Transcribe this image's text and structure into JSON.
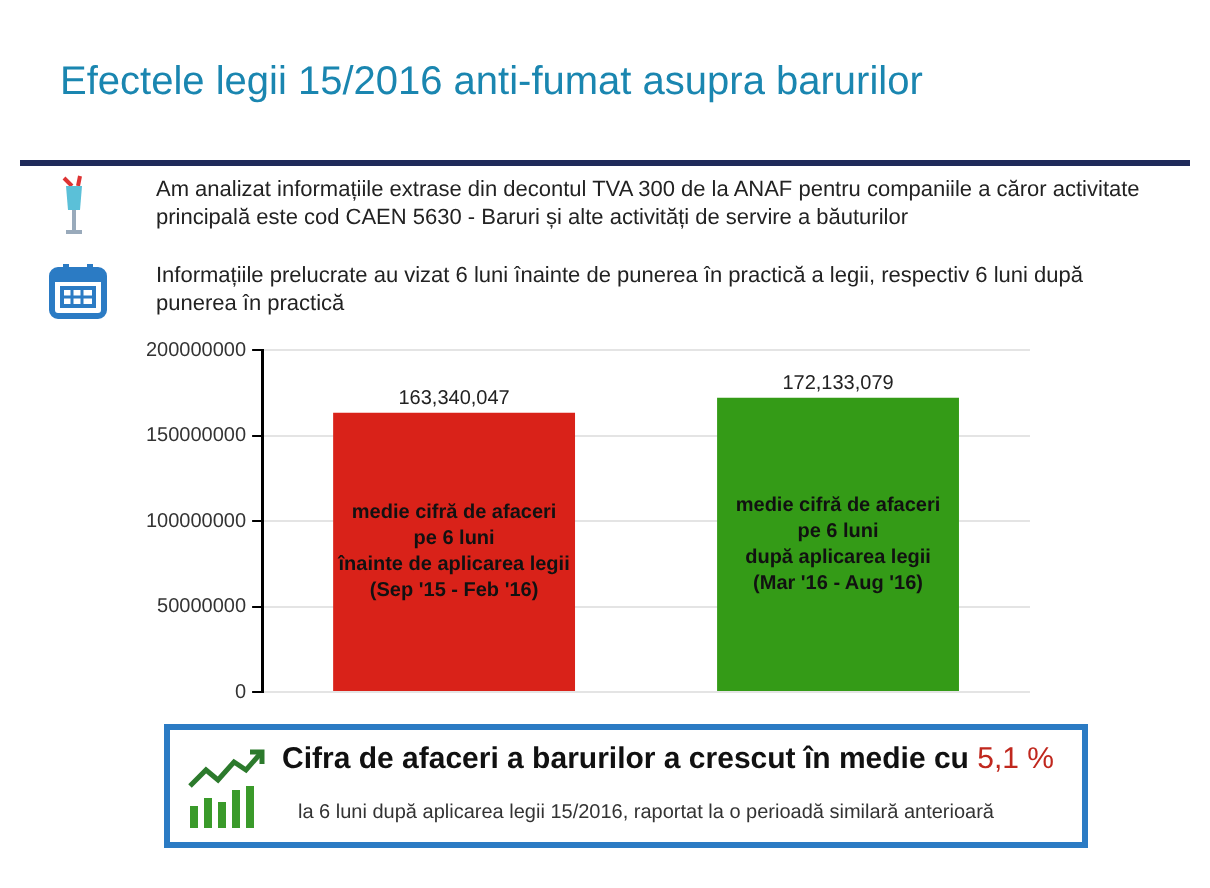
{
  "chart_data": {
    "type": "bar",
    "title": "Efectele legii 15/2016 anti-fumat asupra barurilor",
    "categories": [
      "medie cifră de afaceri\npe 6 luni\nînainte de aplicarea legii\n(Sep '15 - Feb '16)",
      "medie cifră de afaceri\npe 6 luni\ndupă aplicarea legii\n(Mar '16 - Aug '16)"
    ],
    "values": [
      163340047,
      172133079
    ],
    "colors": [
      "#d92219",
      "#349b17"
    ],
    "value_labels": [
      "163,340,047",
      "172,133,079"
    ],
    "ylim": [
      0,
      200000000
    ],
    "yticks": [
      0,
      50000000,
      100000000,
      150000000,
      200000000
    ],
    "grid": "y",
    "annotations": [
      "Am analizat informațiile extrase din decontul TVA 300 de la ANAF pentru companiile a căror activitate principală este cod CAEN 5630 - Baruri și alte activități de servire a băuturilor",
      "Informațiile prelucrate au vizat 6 luni înainte de punerea în practică a legii, respectiv 6 luni după punerea în practică",
      "Cifra de afaceri a barurilor a crescut în medie cu",
      "5,1 %",
      "la 6 luni după aplicarea legii 15/2016, raportat la o perioadă similară anterioară"
    ]
  }
}
